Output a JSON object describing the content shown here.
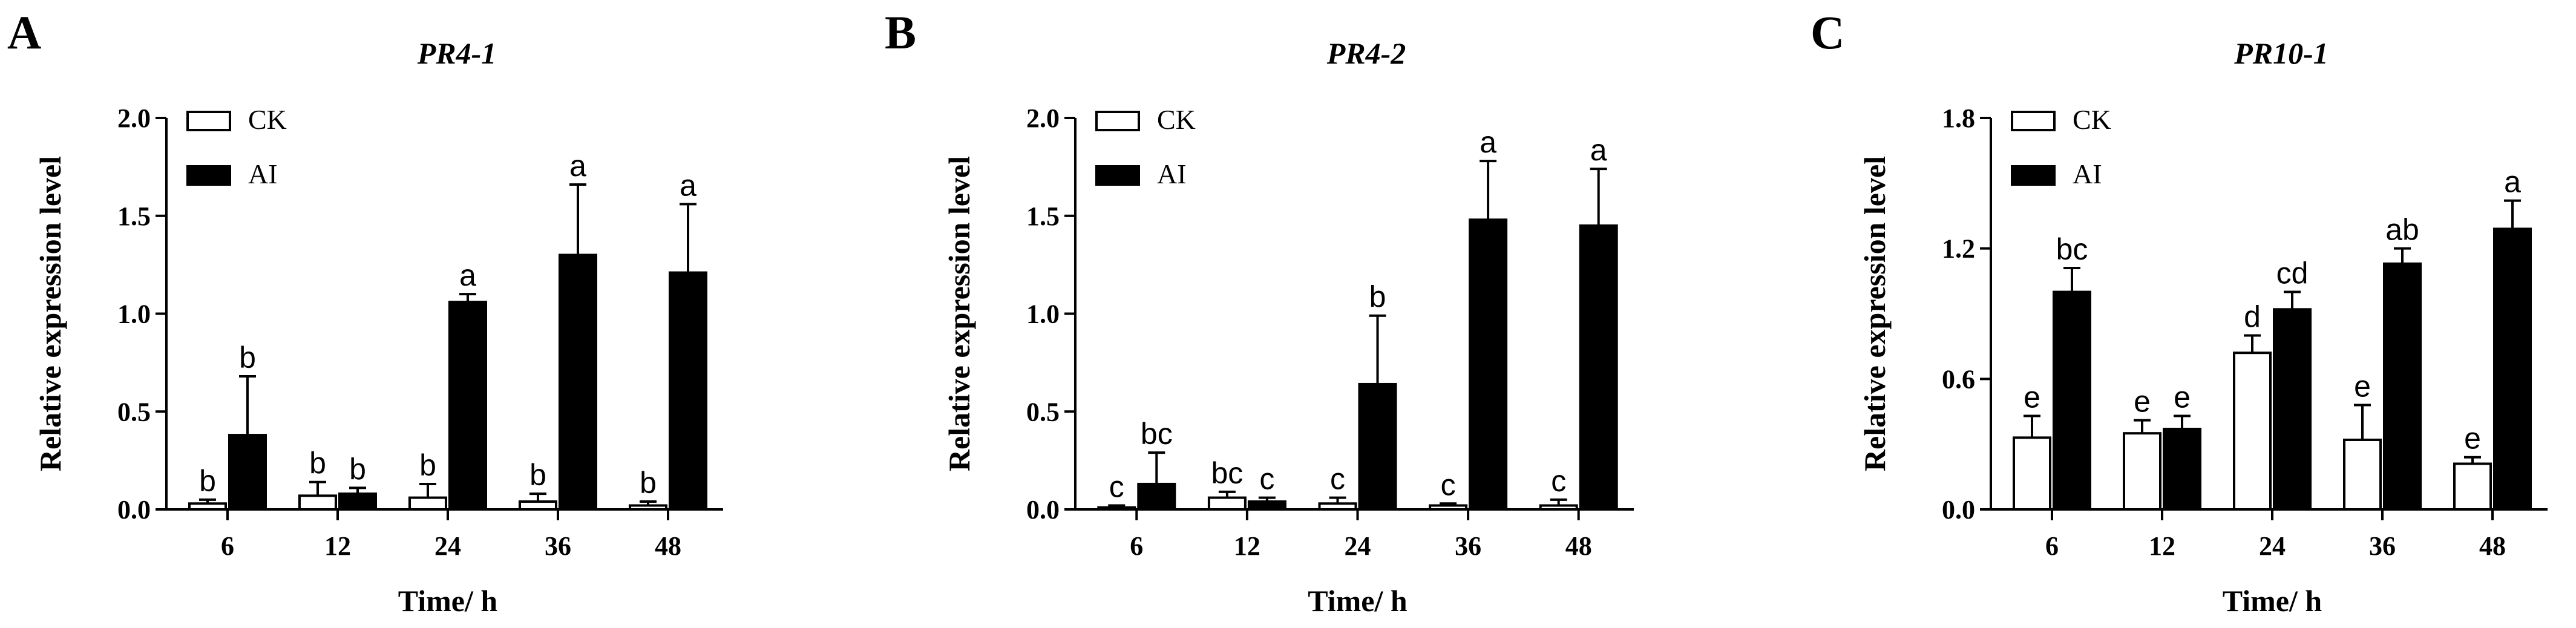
{
  "chart_data": [
    {
      "panel": "A",
      "type": "bar",
      "title": "PR4-1",
      "xlabel": "Time/ h",
      "ylabel": "Relative expression level",
      "categories": [
        "6",
        "12",
        "24",
        "36",
        "48"
      ],
      "ylim": [
        0,
        2.0
      ],
      "yticks": [
        "0.0",
        "0.5",
        "1.0",
        "1.5",
        "2.0"
      ],
      "legend": {
        "placement": "top-left"
      },
      "series": [
        {
          "name": "CK",
          "color": "#ffffff",
          "values": [
            0.03,
            0.07,
            0.06,
            0.04,
            0.02
          ],
          "errors": [
            0.02,
            0.07,
            0.07,
            0.04,
            0.02
          ],
          "labels": [
            "b",
            "b",
            "b",
            "b",
            "b"
          ]
        },
        {
          "name": "AI",
          "color": "#000000",
          "values": [
            0.38,
            0.08,
            1.06,
            1.3,
            1.21
          ],
          "errors": [
            0.3,
            0.03,
            0.04,
            0.36,
            0.35
          ],
          "labels": [
            "b",
            "b",
            "a",
            "a",
            "a"
          ]
        }
      ]
    },
    {
      "panel": "B",
      "type": "bar",
      "title": "PR4-2",
      "xlabel": "Time/ h",
      "ylabel": "Relative expression level",
      "categories": [
        "6",
        "12",
        "24",
        "36",
        "48"
      ],
      "ylim": [
        0,
        2.0
      ],
      "yticks": [
        "0.0",
        "0.5",
        "1.0",
        "1.5",
        "2.0"
      ],
      "legend": {
        "placement": "top-left"
      },
      "series": [
        {
          "name": "CK",
          "color": "#ffffff",
          "values": [
            0.01,
            0.06,
            0.03,
            0.02,
            0.02
          ],
          "errors": [
            0.01,
            0.03,
            0.03,
            0.01,
            0.03
          ],
          "labels": [
            "c",
            "bc",
            "c",
            "c",
            "c"
          ]
        },
        {
          "name": "AI",
          "color": "#000000",
          "values": [
            0.13,
            0.04,
            0.64,
            1.48,
            1.45
          ],
          "errors": [
            0.16,
            0.02,
            0.35,
            0.3,
            0.29
          ],
          "labels": [
            "bc",
            "c",
            "b",
            "a",
            "a"
          ]
        }
      ]
    },
    {
      "panel": "C",
      "type": "bar",
      "title": "PR10-1",
      "xlabel": "Time/ h",
      "ylabel": "Relative expression level",
      "categories": [
        "6",
        "12",
        "24",
        "36",
        "48"
      ],
      "ylim": [
        0,
        1.8
      ],
      "yticks": [
        "0.0",
        "0.6",
        "1.2",
        "1.8"
      ],
      "legend": {
        "placement": "top-left"
      },
      "series": [
        {
          "name": "CK",
          "color": "#ffffff",
          "values": [
            0.33,
            0.35,
            0.72,
            0.32,
            0.21
          ],
          "errors": [
            0.1,
            0.06,
            0.08,
            0.16,
            0.03
          ],
          "labels": [
            "e",
            "e",
            "d",
            "e",
            "e"
          ]
        },
        {
          "name": "AI",
          "color": "#000000",
          "values": [
            1.0,
            0.37,
            0.92,
            1.13,
            1.29
          ],
          "errors": [
            0.11,
            0.06,
            0.08,
            0.07,
            0.13
          ],
          "labels": [
            "bc",
            "e",
            "cd",
            "ab",
            "a"
          ]
        }
      ]
    }
  ]
}
